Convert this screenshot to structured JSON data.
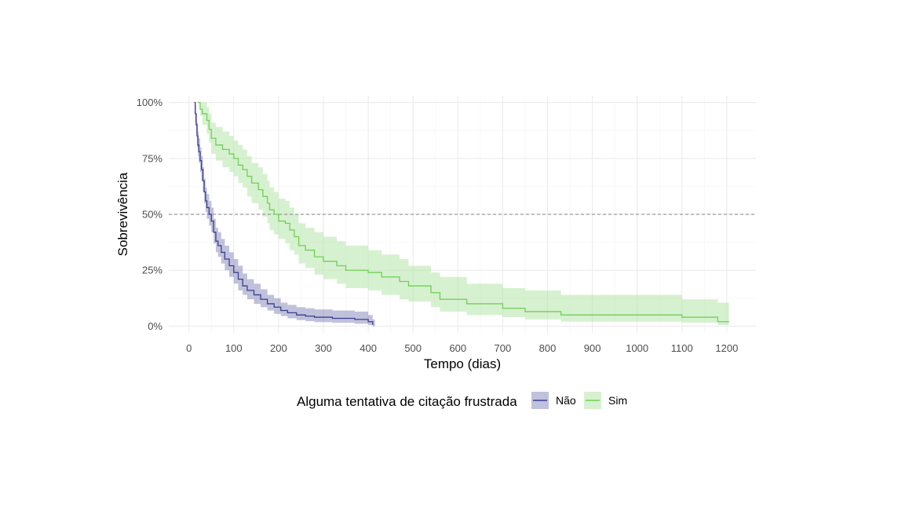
{
  "chart_data": {
    "type": "line",
    "subtype": "kaplan-meier step survival curves with confidence bands",
    "xlabel": "Tempo (dias)",
    "ylabel": "Sobrevivência",
    "xlim": [
      -45,
      1265
    ],
    "ylim": [
      -0.03,
      1.03
    ],
    "x_ticks": [
      0,
      100,
      200,
      300,
      400,
      500,
      600,
      700,
      800,
      900,
      1000,
      1100,
      1200
    ],
    "x_tick_labels": [
      "0",
      "100",
      "200",
      "300",
      "400",
      "500",
      "600",
      "700",
      "800",
      "900",
      "1000",
      "1100",
      "1200"
    ],
    "y_ticks": [
      0,
      0.25,
      0.5,
      0.75,
      1.0
    ],
    "y_tick_labels": [
      "0%",
      "25%",
      "50%",
      "75%",
      "100%"
    ],
    "grid": true,
    "reference_line": {
      "y": 0.5,
      "style": "dashed",
      "color": "#808080"
    },
    "legend": {
      "title": "Alguma tentativa de citação frustrada",
      "position": "bottom"
    },
    "series": [
      {
        "name": "Não",
        "color": "#3b3f8f",
        "band_color": "#3b3f8f",
        "points": [
          [
            12,
            1.0
          ],
          [
            14,
            0.95
          ],
          [
            16,
            0.9
          ],
          [
            18,
            0.85
          ],
          [
            20,
            0.81
          ],
          [
            22,
            0.78
          ],
          [
            25,
            0.74
          ],
          [
            28,
            0.7
          ],
          [
            31,
            0.65
          ],
          [
            34,
            0.6
          ],
          [
            37,
            0.56
          ],
          [
            40,
            0.53
          ],
          [
            45,
            0.5
          ],
          [
            50,
            0.47
          ],
          [
            55,
            0.42
          ],
          [
            60,
            0.38
          ],
          [
            65,
            0.36
          ],
          [
            72,
            0.33
          ],
          [
            80,
            0.3
          ],
          [
            90,
            0.27
          ],
          [
            100,
            0.24
          ],
          [
            110,
            0.21
          ],
          [
            120,
            0.18
          ],
          [
            130,
            0.16
          ],
          [
            145,
            0.14
          ],
          [
            160,
            0.12
          ],
          [
            175,
            0.1
          ],
          [
            190,
            0.085
          ],
          [
            205,
            0.07
          ],
          [
            220,
            0.06
          ],
          [
            240,
            0.05
          ],
          [
            260,
            0.045
          ],
          [
            280,
            0.04
          ],
          [
            320,
            0.035
          ],
          [
            370,
            0.03
          ],
          [
            400,
            0.02
          ],
          [
            410,
            0.005
          ]
        ],
        "band": [
          [
            12,
            1.0,
            1.0
          ],
          [
            14,
            0.99,
            0.91
          ],
          [
            16,
            0.95,
            0.86
          ],
          [
            18,
            0.91,
            0.8
          ],
          [
            20,
            0.87,
            0.76
          ],
          [
            22,
            0.84,
            0.73
          ],
          [
            25,
            0.8,
            0.69
          ],
          [
            28,
            0.76,
            0.65
          ],
          [
            31,
            0.71,
            0.6
          ],
          [
            34,
            0.66,
            0.55
          ],
          [
            37,
            0.62,
            0.51
          ],
          [
            40,
            0.59,
            0.48
          ],
          [
            45,
            0.56,
            0.45
          ],
          [
            50,
            0.53,
            0.42
          ],
          [
            55,
            0.48,
            0.37
          ],
          [
            60,
            0.44,
            0.33
          ],
          [
            65,
            0.42,
            0.31
          ],
          [
            72,
            0.39,
            0.28
          ],
          [
            80,
            0.36,
            0.25
          ],
          [
            90,
            0.33,
            0.22
          ],
          [
            100,
            0.3,
            0.19
          ],
          [
            110,
            0.27,
            0.16
          ],
          [
            120,
            0.235,
            0.14
          ],
          [
            130,
            0.21,
            0.12
          ],
          [
            145,
            0.19,
            0.1
          ],
          [
            160,
            0.165,
            0.085
          ],
          [
            175,
            0.14,
            0.07
          ],
          [
            190,
            0.125,
            0.055
          ],
          [
            205,
            0.105,
            0.045
          ],
          [
            220,
            0.095,
            0.035
          ],
          [
            240,
            0.085,
            0.027
          ],
          [
            260,
            0.08,
            0.022
          ],
          [
            280,
            0.075,
            0.018
          ],
          [
            320,
            0.07,
            0.015
          ],
          [
            370,
            0.065,
            0.011
          ],
          [
            400,
            0.05,
            0.005
          ],
          [
            410,
            0.03,
            0.0
          ],
          [
            415,
            0.03,
            0.0
          ]
        ]
      },
      {
        "name": "Sim",
        "color": "#6fcf57",
        "band_color": "#b5e6a7",
        "points": [
          [
            20,
            1.0
          ],
          [
            25,
            0.97
          ],
          [
            30,
            0.95
          ],
          [
            40,
            0.92
          ],
          [
            45,
            0.88
          ],
          [
            50,
            0.84
          ],
          [
            60,
            0.81
          ],
          [
            75,
            0.79
          ],
          [
            90,
            0.77
          ],
          [
            100,
            0.75
          ],
          [
            110,
            0.72
          ],
          [
            120,
            0.7
          ],
          [
            130,
            0.67
          ],
          [
            140,
            0.64
          ],
          [
            155,
            0.61
          ],
          [
            165,
            0.58
          ],
          [
            175,
            0.55
          ],
          [
            180,
            0.52
          ],
          [
            190,
            0.5
          ],
          [
            200,
            0.47
          ],
          [
            215,
            0.46
          ],
          [
            225,
            0.43
          ],
          [
            235,
            0.4
          ],
          [
            245,
            0.36
          ],
          [
            260,
            0.34
          ],
          [
            280,
            0.31
          ],
          [
            300,
            0.29
          ],
          [
            330,
            0.27
          ],
          [
            350,
            0.25
          ],
          [
            400,
            0.24
          ],
          [
            430,
            0.22
          ],
          [
            470,
            0.2
          ],
          [
            490,
            0.18
          ],
          [
            540,
            0.15
          ],
          [
            560,
            0.12
          ],
          [
            620,
            0.1
          ],
          [
            700,
            0.08
          ],
          [
            750,
            0.065
          ],
          [
            830,
            0.05
          ],
          [
            1100,
            0.04
          ],
          [
            1180,
            0.02
          ],
          [
            1205,
            0.02
          ]
        ],
        "band": [
          [
            20,
            1.0,
            1.0
          ],
          [
            25,
            1.0,
            0.94
          ],
          [
            30,
            1.0,
            0.9
          ],
          [
            40,
            0.98,
            0.86
          ],
          [
            45,
            0.95,
            0.82
          ],
          [
            50,
            0.91,
            0.77
          ],
          [
            60,
            0.89,
            0.74
          ],
          [
            75,
            0.87,
            0.71
          ],
          [
            90,
            0.85,
            0.69
          ],
          [
            100,
            0.83,
            0.67
          ],
          [
            110,
            0.81,
            0.64
          ],
          [
            120,
            0.79,
            0.62
          ],
          [
            130,
            0.76,
            0.58
          ],
          [
            140,
            0.73,
            0.55
          ],
          [
            155,
            0.71,
            0.52
          ],
          [
            165,
            0.68,
            0.49
          ],
          [
            175,
            0.65,
            0.46
          ],
          [
            180,
            0.62,
            0.43
          ],
          [
            190,
            0.6,
            0.41
          ],
          [
            200,
            0.57,
            0.39
          ],
          [
            215,
            0.56,
            0.37
          ],
          [
            225,
            0.53,
            0.34
          ],
          [
            235,
            0.5,
            0.32
          ],
          [
            245,
            0.46,
            0.28
          ],
          [
            260,
            0.44,
            0.26
          ],
          [
            280,
            0.42,
            0.23
          ],
          [
            300,
            0.4,
            0.21
          ],
          [
            330,
            0.38,
            0.19
          ],
          [
            350,
            0.36,
            0.17
          ],
          [
            400,
            0.34,
            0.16
          ],
          [
            430,
            0.32,
            0.14
          ],
          [
            470,
            0.3,
            0.12
          ],
          [
            490,
            0.27,
            0.11
          ],
          [
            540,
            0.24,
            0.085
          ],
          [
            560,
            0.22,
            0.065
          ],
          [
            620,
            0.19,
            0.05
          ],
          [
            700,
            0.17,
            0.04
          ],
          [
            750,
            0.16,
            0.03
          ],
          [
            830,
            0.14,
            0.02
          ],
          [
            1100,
            0.12,
            0.015
          ],
          [
            1180,
            0.105,
            0.005
          ],
          [
            1205,
            0.105,
            0.005
          ]
        ]
      }
    ]
  }
}
